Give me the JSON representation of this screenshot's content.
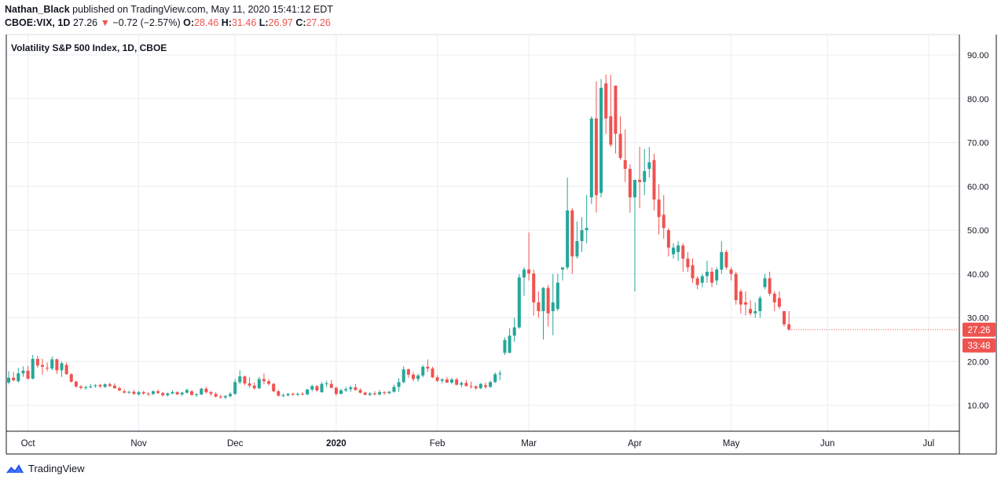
{
  "header": {
    "author": "Nathan_Black",
    "published": "published on TradingView.com, May 11, 2020 15:41:12 EDT"
  },
  "quote": {
    "symbol": "CBOE:VIX, 1D",
    "last": "27.26",
    "arrow": "▼",
    "change": "−0.72 (−2.57%)",
    "o_label": "O:",
    "o": "28.46",
    "h_label": "H:",
    "h": "31.46",
    "l_label": "L:",
    "l": "26.97",
    "c_label": "C:",
    "c": "27.26"
  },
  "footer": {
    "brand": "TradingView"
  },
  "colors": {
    "up": "#26a69a",
    "down": "#ef5350",
    "grid": "#e9edf2",
    "axis": "#131722"
  },
  "chart_data": {
    "type": "candlestick",
    "title": "Volatility S&P 500 Index, 1D, CBOE",
    "ylim": [
      4,
      96
    ],
    "y_ticks": [
      10,
      20,
      30,
      40,
      50,
      60,
      70,
      80,
      90
    ],
    "y_tick_labels": [
      "10.00",
      "20.00",
      "30.00",
      "40.00",
      "50.00",
      "60.00",
      "70.00",
      "80.00",
      "90.00"
    ],
    "x_labels": [
      "Oct",
      "Nov",
      "Dec",
      "2020",
      "Feb",
      "Mar",
      "Apr",
      "May",
      "Jun",
      "Jul"
    ],
    "x_label_day_index": [
      4,
      27,
      47,
      68,
      89,
      108,
      130,
      150,
      170,
      191
    ],
    "total_days": 193,
    "price_label": "27.26",
    "countdown_label": "33:48",
    "candles": [
      [
        15.2,
        17.8,
        14.8,
        16.3
      ],
      [
        16.3,
        17.6,
        15.5,
        15.7
      ],
      [
        15.5,
        18.5,
        15.2,
        17.3
      ],
      [
        17.3,
        18.9,
        16.5,
        17.9
      ],
      [
        17.9,
        19.0,
        15.8,
        16.1
      ],
      [
        16.1,
        21.5,
        15.9,
        20.6
      ],
      [
        20.6,
        21.3,
        18.6,
        19.1
      ],
      [
        19.2,
        20.6,
        17.0,
        18.8
      ],
      [
        18.6,
        19.8,
        17.8,
        18.4
      ],
      [
        18.4,
        21.2,
        18.0,
        20.5
      ],
      [
        20.5,
        20.7,
        17.2,
        18.0
      ],
      [
        18.0,
        20.0,
        16.5,
        19.6
      ],
      [
        19.2,
        19.8,
        17.0,
        17.1
      ],
      [
        17.1,
        17.3,
        15.2,
        15.4
      ],
      [
        15.4,
        15.7,
        14.0,
        14.3
      ],
      [
        14.3,
        14.6,
        13.6,
        14.0
      ],
      [
        14.0,
        14.5,
        13.6,
        14.1
      ],
      [
        14.1,
        14.9,
        13.9,
        14.3
      ],
      [
        14.4,
        14.8,
        14.0,
        14.6
      ],
      [
        14.6,
        14.9,
        14.0,
        14.3
      ],
      [
        14.2,
        15.0,
        14.0,
        14.8
      ],
      [
        14.8,
        15.2,
        14.2,
        14.4
      ],
      [
        14.5,
        15.0,
        13.8,
        13.9
      ],
      [
        13.9,
        14.3,
        13.2,
        13.4
      ],
      [
        13.2,
        13.7,
        12.7,
        12.9
      ],
      [
        12.9,
        13.3,
        12.6,
        13.1
      ],
      [
        13.1,
        13.5,
        12.4,
        12.6
      ],
      [
        12.5,
        13.3,
        12.2,
        13.0
      ],
      [
        13.0,
        13.3,
        12.4,
        12.7
      ],
      [
        12.7,
        13.0,
        12.1,
        12.6
      ],
      [
        12.6,
        13.4,
        12.3,
        13.2
      ],
      [
        13.2,
        13.6,
        12.6,
        12.8
      ],
      [
        12.8,
        13.1,
        12.0,
        12.3
      ],
      [
        12.3,
        12.9,
        12.0,
        12.7
      ],
      [
        12.7,
        13.4,
        12.5,
        13.0
      ],
      [
        13.0,
        13.2,
        12.3,
        12.5
      ],
      [
        12.5,
        13.1,
        12.1,
        12.9
      ],
      [
        12.9,
        13.8,
        12.7,
        13.5
      ],
      [
        13.2,
        13.5,
        12.2,
        12.4
      ],
      [
        12.4,
        12.8,
        11.9,
        12.5
      ],
      [
        12.5,
        14.0,
        12.3,
        13.8
      ],
      [
        13.8,
        14.2,
        12.7,
        13.0
      ],
      [
        13.0,
        13.3,
        12.2,
        12.6
      ],
      [
        12.6,
        13.0,
        11.8,
        12.0
      ],
      [
        12.0,
        12.4,
        11.5,
        11.8
      ],
      [
        11.8,
        12.3,
        11.4,
        12.1
      ],
      [
        12.1,
        13.0,
        11.8,
        12.6
      ],
      [
        12.6,
        16.0,
        12.4,
        15.3
      ],
      [
        15.3,
        18.0,
        14.8,
        16.6
      ],
      [
        16.6,
        16.8,
        14.6,
        15.0
      ],
      [
        15.0,
        16.4,
        14.0,
        14.5
      ],
      [
        14.5,
        15.2,
        13.6,
        13.9
      ],
      [
        13.9,
        16.5,
        13.7,
        16.0
      ],
      [
        16.0,
        17.3,
        14.8,
        15.5
      ],
      [
        15.5,
        16.0,
        14.5,
        14.9
      ],
      [
        14.9,
        15.1,
        13.0,
        13.2
      ],
      [
        13.2,
        13.5,
        12.0,
        12.2
      ],
      [
        12.1,
        12.7,
        11.9,
        12.3
      ],
      [
        12.3,
        12.8,
        12.0,
        12.6
      ],
      [
        12.6,
        12.9,
        12.2,
        12.4
      ],
      [
        12.4,
        12.9,
        12.1,
        12.6
      ],
      [
        12.6,
        13.0,
        12.3,
        12.5
      ],
      [
        12.5,
        13.8,
        12.3,
        13.6
      ],
      [
        13.6,
        14.7,
        13.2,
        14.4
      ],
      [
        14.4,
        14.6,
        13.1,
        13.4
      ],
      [
        13.0,
        15.3,
        12.9,
        14.9
      ],
      [
        14.9,
        15.6,
        14.2,
        15.0
      ],
      [
        14.9,
        15.8,
        13.9,
        14.0
      ],
      [
        14.0,
        14.3,
        12.2,
        12.6
      ],
      [
        12.6,
        13.8,
        12.5,
        13.4
      ],
      [
        13.4,
        14.2,
        13.0,
        13.7
      ],
      [
        13.7,
        14.5,
        13.1,
        14.1
      ],
      [
        14.1,
        14.9,
        13.4,
        13.5
      ],
      [
        13.5,
        13.9,
        12.7,
        12.9
      ],
      [
        12.9,
        13.1,
        12.3,
        12.4
      ],
      [
        12.4,
        13.0,
        12.1,
        12.7
      ],
      [
        12.7,
        13.2,
        12.3,
        12.5
      ],
      [
        12.5,
        13.5,
        12.2,
        13.0
      ],
      [
        13.0,
        13.2,
        12.4,
        12.8
      ],
      [
        12.8,
        13.3,
        12.5,
        13.1
      ],
      [
        13.1,
        14.7,
        12.9,
        14.2
      ],
      [
        14.2,
        16.2,
        13.1,
        15.3
      ],
      [
        15.3,
        18.9,
        15.0,
        18.2
      ],
      [
        18.2,
        18.4,
        16.3,
        17.0
      ],
      [
        17.0,
        17.6,
        15.5,
        16.0
      ],
      [
        16.0,
        17.2,
        15.4,
        16.8
      ],
      [
        16.8,
        19.2,
        16.4,
        18.8
      ],
      [
        18.8,
        20.5,
        17.6,
        18.4
      ],
      [
        18.4,
        18.8,
        16.2,
        16.4
      ],
      [
        16.4,
        16.9,
        15.3,
        15.6
      ],
      [
        15.6,
        16.2,
        15.0,
        15.9
      ],
      [
        15.9,
        16.5,
        15.1,
        15.2
      ],
      [
        15.2,
        16.3,
        14.9,
        15.9
      ],
      [
        15.9,
        16.3,
        14.5,
        14.7
      ],
      [
        14.7,
        15.5,
        14.1,
        15.1
      ],
      [
        15.1,
        15.8,
        14.3,
        14.4
      ],
      [
        14.4,
        15.4,
        13.8,
        14.3
      ],
      [
        14.3,
        14.6,
        13.5,
        13.9
      ],
      [
        13.9,
        15.1,
        13.7,
        14.9
      ],
      [
        14.6,
        15.2,
        13.8,
        14.2
      ],
      [
        14.2,
        15.6,
        14.0,
        15.3
      ],
      [
        15.3,
        17.5,
        15.1,
        17.1
      ],
      [
        17.1,
        18.0,
        15.8,
        17.3
      ],
      [
        22.0,
        25.5,
        21.5,
        24.9
      ],
      [
        22.0,
        27.6,
        21.9,
        25.9
      ],
      [
        25.9,
        30.0,
        24.5,
        27.8
      ],
      [
        27.8,
        40.0,
        27.5,
        39.2
      ],
      [
        39.2,
        41.5,
        35.0,
        41.0
      ],
      [
        41.0,
        49.5,
        38.5,
        40.1
      ],
      [
        40.1,
        41.0,
        30.5,
        33.5
      ],
      [
        33.5,
        36.0,
        30.0,
        31.5
      ],
      [
        31.5,
        37.0,
        25.0,
        36.8
      ],
      [
        36.8,
        37.5,
        28.0,
        31.0
      ],
      [
        31.5,
        40.0,
        26.0,
        33.5
      ],
      [
        32.0,
        40.0,
        31.5,
        38.0
      ],
      [
        41.0,
        41.5,
        38.5,
        41.5
      ],
      [
        41.5,
        62.0,
        41.0,
        54.5
      ],
      [
        54.5,
        55.0,
        40.0,
        44.0
      ],
      [
        44.0,
        52.0,
        43.5,
        47.5
      ],
      [
        47.5,
        53.0,
        45.0,
        50.0
      ],
      [
        50.0,
        58.0,
        47.0,
        50.5
      ],
      [
        57.5,
        76.0,
        56.0,
        75.5
      ],
      [
        75.5,
        84.0,
        54.0,
        58.0
      ],
      [
        58.5,
        84.5,
        57.5,
        82.5
      ],
      [
        83.5,
        85.5,
        72.0,
        75.5
      ],
      [
        76.0,
        85.5,
        69.0,
        69.5
      ],
      [
        83.0,
        83.0,
        67.5,
        72.0
      ],
      [
        72.0,
        76.0,
        66.0,
        66.5
      ],
      [
        66.0,
        73.0,
        61.0,
        64.0
      ],
      [
        64.0,
        65.0,
        54.0,
        57.5
      ],
      [
        57.5,
        61.5,
        36.0,
        61.5
      ],
      [
        61.5,
        69.0,
        55.0,
        61.0
      ],
      [
        61.0,
        68.5,
        58.0,
        63.5
      ],
      [
        64.0,
        69.0,
        62.0,
        65.5
      ],
      [
        66.0,
        67.5,
        54.5,
        57.0
      ],
      [
        57.0,
        60.5,
        49.0,
        53.0
      ],
      [
        53.5,
        58.0,
        48.0,
        50.5
      ],
      [
        50.0,
        50.5,
        44.0,
        46.0
      ],
      [
        44.5,
        47.0,
        43.5,
        46.0
      ],
      [
        45.0,
        47.5,
        43.0,
        46.5
      ],
      [
        46.5,
        47.0,
        40.5,
        43.5
      ],
      [
        43.5,
        45.0,
        40.5,
        41.5
      ],
      [
        42.0,
        43.5,
        38.0,
        39.0
      ],
      [
        39.0,
        39.5,
        36.5,
        37.5
      ],
      [
        38.0,
        40.0,
        37.0,
        39.5
      ],
      [
        39.5,
        43.0,
        38.0,
        40.5
      ],
      [
        40.5,
        41.5,
        37.0,
        38.0
      ],
      [
        38.5,
        41.5,
        37.5,
        41.0
      ],
      [
        41.0,
        47.5,
        40.0,
        45.0
      ],
      [
        45.0,
        45.5,
        41.0,
        41.5
      ],
      [
        41.0,
        41.5,
        38.5,
        40.0
      ],
      [
        40.0,
        40.5,
        33.0,
        34.0
      ],
      [
        36.0,
        36.5,
        31.0,
        33.0
      ],
      [
        33.5,
        36.0,
        30.5,
        33.0
      ],
      [
        32.0,
        34.0,
        30.5,
        31.0
      ],
      [
        31.0,
        33.5,
        30.0,
        31.5
      ],
      [
        31.5,
        35.0,
        30.0,
        34.5
      ],
      [
        37.0,
        40.0,
        36.5,
        39.0
      ],
      [
        39.0,
        40.5,
        35.0,
        35.5
      ],
      [
        35.5,
        36.0,
        31.5,
        33.5
      ],
      [
        34.5,
        36.0,
        32.0,
        32.5
      ],
      [
        31.5,
        31.5,
        28.0,
        28.5
      ],
      [
        28.5,
        31.5,
        27.0,
        27.3
      ]
    ]
  }
}
